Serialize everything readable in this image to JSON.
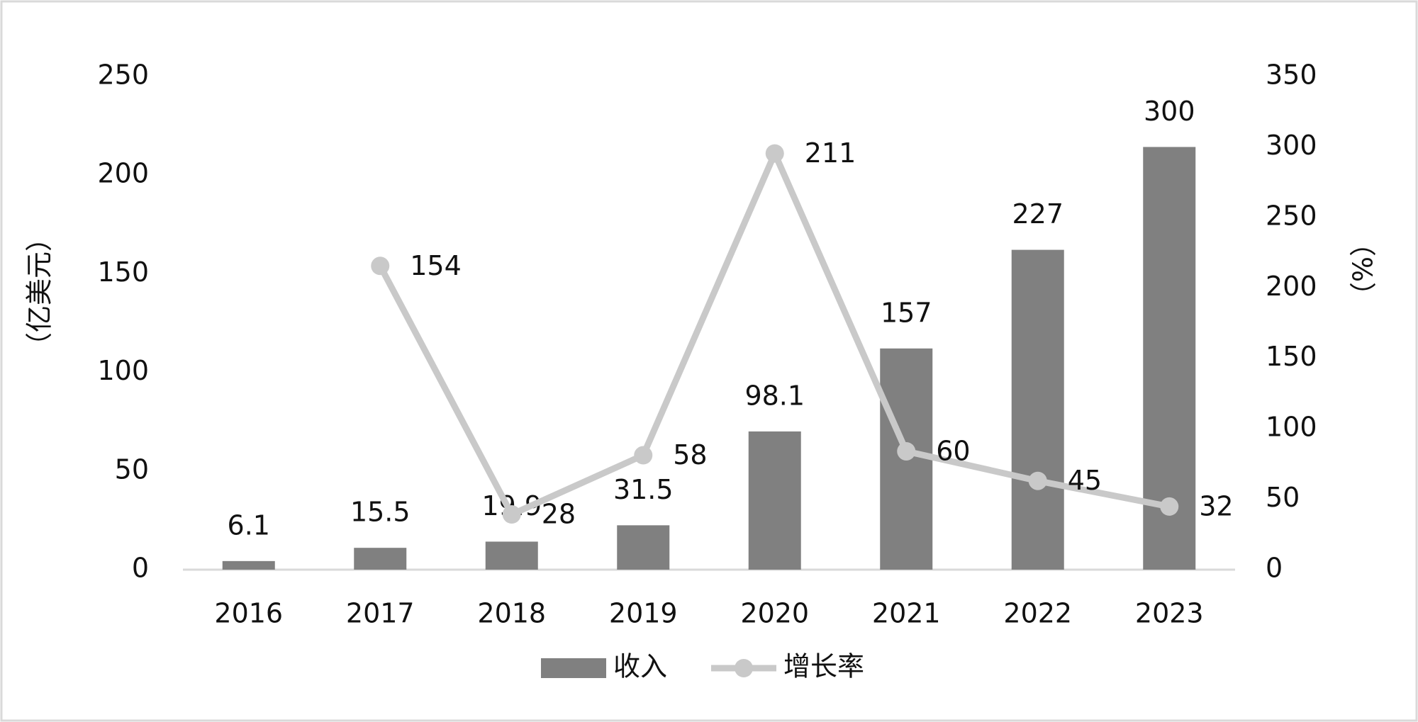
{
  "chart_data": {
    "type": "combo",
    "categories": [
      "2016",
      "2017",
      "2018",
      "2019",
      "2020",
      "2021",
      "2022",
      "2023"
    ],
    "series": [
      {
        "name": "收入",
        "type": "bar",
        "color": "#808080",
        "axis": "y2",
        "values": [
          6.1,
          15.5,
          19.9,
          31.5,
          98.1,
          157,
          227,
          300
        ]
      },
      {
        "name": "增长率",
        "type": "line",
        "color": "#c9c9c9",
        "axis": "y",
        "values": [
          null,
          154,
          28,
          58,
          211,
          60,
          45,
          32
        ]
      }
    ],
    "ylabel": "（亿美元）",
    "y2label": "（%）",
    "ylim": [
      0,
      250
    ],
    "yticks": [
      0,
      50,
      100,
      150,
      200,
      250
    ],
    "y2lim": [
      0,
      350
    ],
    "y2ticks": [
      0,
      50,
      100,
      150,
      200,
      250,
      300,
      350
    ],
    "legend": "bottom"
  }
}
